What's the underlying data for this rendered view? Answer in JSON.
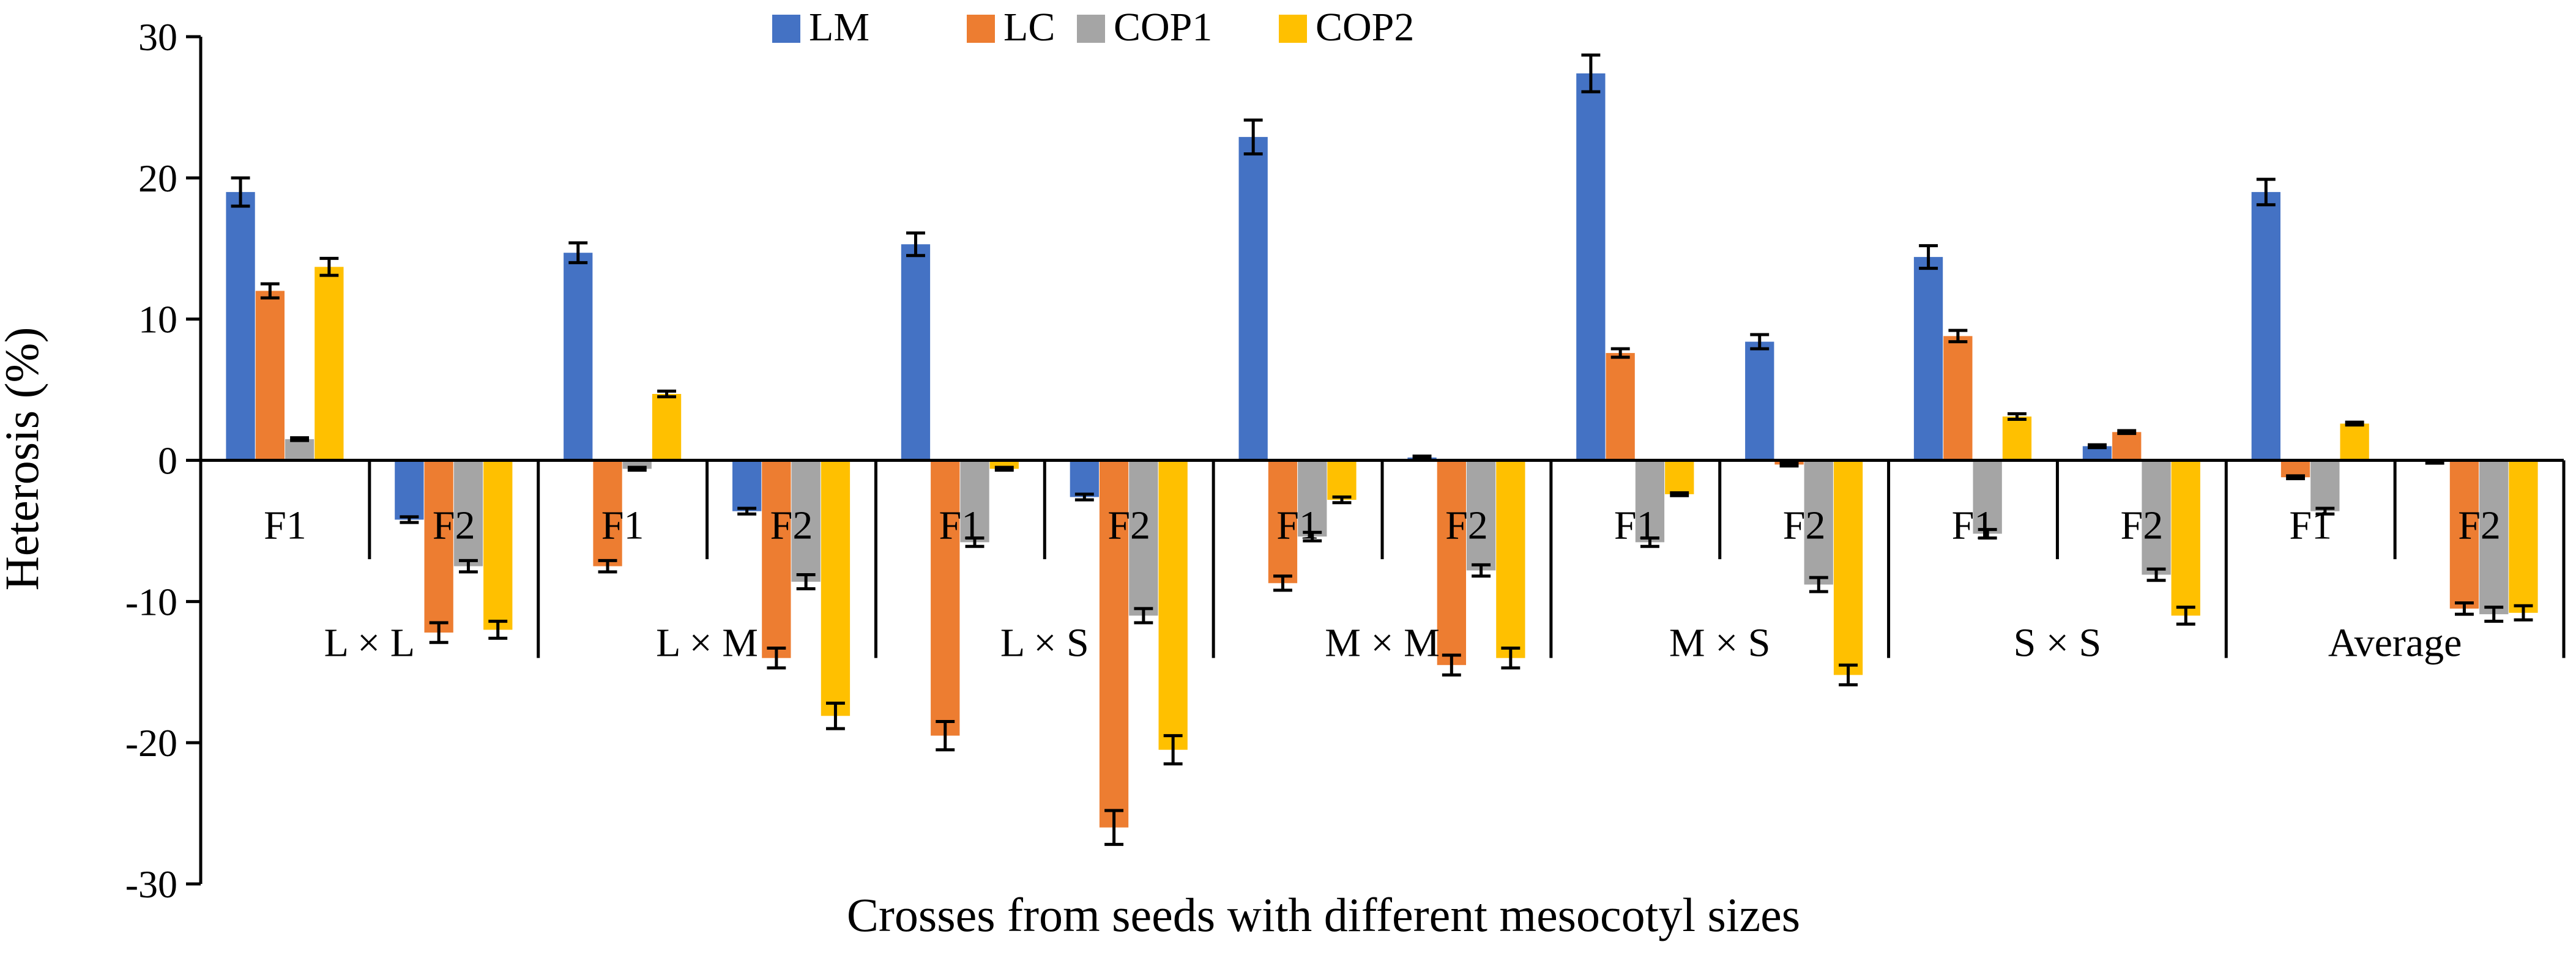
{
  "chart_data": {
    "type": "bar",
    "ylabel": "Heterosis (%)",
    "xlabel": "Crosses from seeds with different mesocotyl sizes",
    "ylim": [
      -30,
      30
    ],
    "yticks": [
      -30,
      -20,
      -10,
      0,
      10,
      20,
      30
    ],
    "legend_position": "top-center",
    "groups": [
      "L × L",
      "L × M",
      "L × S",
      "M × M",
      "M × S",
      "S × S",
      "Average"
    ],
    "generations": [
      "F1",
      "F2"
    ],
    "series": [
      {
        "name": "LM",
        "color": "#4472C4",
        "values": [
          19.0,
          -4.2,
          14.7,
          -3.6,
          15.3,
          -2.6,
          22.9,
          0.2,
          27.4,
          8.4,
          14.4,
          1.0,
          19.0,
          -0.1
        ],
        "errors": [
          1.0,
          0.2,
          0.7,
          0.2,
          0.8,
          0.2,
          1.2,
          0.1,
          1.3,
          0.5,
          0.8,
          0.1,
          0.9,
          0.1
        ]
      },
      {
        "name": "LC",
        "color": "#ED7D31",
        "values": [
          12.0,
          -12.2,
          -7.5,
          -14.0,
          -19.5,
          -26.0,
          -8.7,
          -14.5,
          7.6,
          -0.3,
          8.8,
          2.0,
          -1.2,
          -10.5
        ],
        "errors": [
          0.5,
          0.7,
          0.4,
          0.7,
          1.0,
          1.2,
          0.5,
          0.7,
          0.3,
          0.1,
          0.4,
          0.1,
          0.1,
          0.4
        ]
      },
      {
        "name": "COP1",
        "color": "#A5A5A5",
        "values": [
          1.5,
          -7.5,
          -0.6,
          -8.6,
          -5.8,
          -11.0,
          -5.4,
          -7.8,
          -5.8,
          -8.8,
          -5.2,
          -8.1,
          -3.6,
          -10.9
        ],
        "errors": [
          0.1,
          0.4,
          0.1,
          0.5,
          0.3,
          0.5,
          0.3,
          0.4,
          0.3,
          0.5,
          0.3,
          0.4,
          0.2,
          0.5
        ]
      },
      {
        "name": "COP2",
        "color": "#FFC000",
        "values": [
          13.7,
          -12.0,
          4.7,
          -18.1,
          -0.6,
          -20.5,
          -2.8,
          -14.0,
          -2.4,
          -15.2,
          3.1,
          -11.0,
          2.6,
          -10.8
        ],
        "errors": [
          0.6,
          0.6,
          0.2,
          0.9,
          0.1,
          1.0,
          0.2,
          0.7,
          0.1,
          0.7,
          0.2,
          0.6,
          0.1,
          0.5
        ]
      }
    ]
  }
}
